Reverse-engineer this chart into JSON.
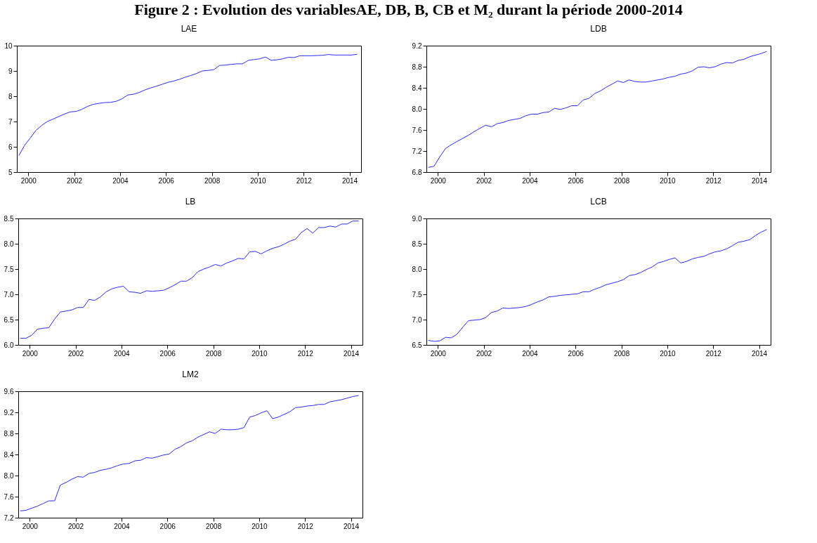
{
  "chart_data": [
    {
      "type": "other",
      "title": "Figure 2 : Evolution des variablesAE, DB, B, CB et M₂ durant la période 2000-2014"
    },
    {
      "type": "line",
      "title": "LAE",
      "xlim": [
        "2000-01-01",
        "2015-01-01"
      ],
      "xticks": [
        {
          "value": "2000-07-01",
          "label": "2000"
        },
        {
          "value": "2002-07-01",
          "label": "2002"
        },
        {
          "value": "2004-07-01",
          "label": "2004"
        },
        {
          "value": "2006-07-01",
          "label": "2006"
        },
        {
          "value": "2008-07-01",
          "label": "2008"
        },
        {
          "value": "2010-07-01",
          "label": "2010"
        },
        {
          "value": "2012-07-01",
          "label": "2012"
        },
        {
          "value": "2014-07-01",
          "label": "2014"
        }
      ],
      "ylim": [
        5,
        10
      ],
      "yticks": [
        5,
        6,
        7,
        8,
        9,
        10
      ],
      "grid": false,
      "marker": "none",
      "line_style": "solid",
      "series": [
        {
          "color": "#2b2bff",
          "values": [
            5.65,
            6.05,
            6.35,
            6.65,
            6.85,
            7.0,
            7.1,
            7.2,
            7.3,
            7.38,
            7.4,
            7.48,
            7.6,
            7.68,
            7.72,
            7.75,
            7.76,
            7.8,
            7.9,
            8.05,
            8.08,
            8.15,
            8.25,
            8.33,
            8.4,
            8.47,
            8.55,
            8.6,
            8.67,
            8.75,
            8.82,
            8.9,
            9.0,
            9.02,
            9.05,
            9.22,
            9.23,
            9.26,
            9.28,
            9.28,
            9.42,
            9.45,
            9.48,
            9.55,
            9.42,
            9.44,
            9.48,
            9.54,
            9.53,
            9.6,
            9.6,
            9.6,
            9.61,
            9.62,
            9.65,
            9.63,
            9.63,
            9.63,
            9.63,
            9.66
          ]
        }
      ],
      "x": [
        "2000-02",
        "2000-05",
        "2000-08",
        "2000-11",
        "2001-02",
        "2001-05",
        "2001-08",
        "2001-11",
        "2002-02",
        "2002-05",
        "2002-08",
        "2002-11",
        "2003-02",
        "2003-05",
        "2003-08",
        "2003-11",
        "2004-02",
        "2004-05",
        "2004-08",
        "2004-11",
        "2005-02",
        "2005-05",
        "2005-08",
        "2005-11",
        "2006-02",
        "2006-05",
        "2006-08",
        "2006-11",
        "2007-02",
        "2007-05",
        "2007-08",
        "2007-11",
        "2008-02",
        "2008-05",
        "2008-08",
        "2008-11",
        "2009-02",
        "2009-05",
        "2009-08",
        "2009-11",
        "2010-02",
        "2010-05",
        "2010-08",
        "2010-11",
        "2011-02",
        "2011-05",
        "2011-08",
        "2011-11",
        "2012-02",
        "2012-05",
        "2012-08",
        "2012-11",
        "2013-02",
        "2013-05",
        "2013-08",
        "2013-11",
        "2014-02",
        "2014-05",
        "2014-08",
        "2014-11"
      ]
    },
    {
      "type": "line",
      "title": "LDB",
      "xlim": [
        "2000-01-01",
        "2015-01-01"
      ],
      "xticks": [
        {
          "value": "2000-07-01",
          "label": "2000"
        },
        {
          "value": "2002-07-01",
          "label": "2002"
        },
        {
          "value": "2004-07-01",
          "label": "2004"
        },
        {
          "value": "2006-07-01",
          "label": "2006"
        },
        {
          "value": "2008-07-01",
          "label": "2008"
        },
        {
          "value": "2010-07-01",
          "label": "2010"
        },
        {
          "value": "2012-07-01",
          "label": "2012"
        },
        {
          "value": "2014-07-01",
          "label": "2014"
        }
      ],
      "ylim": [
        6.8,
        9.2
      ],
      "yticks": [
        6.8,
        7.2,
        7.6,
        {
          "value": 8,
          "label": "8.0"
        },
        8.4,
        8.8,
        9.2
      ],
      "grid": false,
      "marker": "none",
      "line_style": "solid",
      "series": [
        {
          "color": "#2b2bff",
          "values": [
            6.89,
            6.91,
            7.09,
            7.25,
            7.32,
            7.38,
            7.44,
            7.5,
            7.57,
            7.63,
            7.69,
            7.66,
            7.72,
            7.74,
            7.78,
            7.8,
            7.82,
            7.87,
            7.9,
            7.9,
            7.93,
            7.94,
            8.01,
            7.99,
            8.02,
            8.06,
            8.06,
            8.17,
            8.2,
            8.29,
            8.34,
            8.41,
            8.47,
            8.53,
            8.5,
            8.55,
            8.52,
            8.51,
            8.51,
            8.53,
            8.55,
            8.57,
            8.6,
            8.62,
            8.66,
            8.68,
            8.72,
            8.79,
            8.8,
            8.78,
            8.8,
            8.85,
            8.88,
            8.87,
            8.92,
            8.94,
            8.99,
            9.02,
            9.05,
            9.09
          ]
        }
      ],
      "x": [
        "2000-02",
        "2000-05",
        "2000-08",
        "2000-11",
        "2001-02",
        "2001-05",
        "2001-08",
        "2001-11",
        "2002-02",
        "2002-05",
        "2002-08",
        "2002-11",
        "2003-02",
        "2003-05",
        "2003-08",
        "2003-11",
        "2004-02",
        "2004-05",
        "2004-08",
        "2004-11",
        "2005-02",
        "2005-05",
        "2005-08",
        "2005-11",
        "2006-02",
        "2006-05",
        "2006-08",
        "2006-11",
        "2007-02",
        "2007-05",
        "2007-08",
        "2007-11",
        "2008-02",
        "2008-05",
        "2008-08",
        "2008-11",
        "2009-02",
        "2009-05",
        "2009-08",
        "2009-11",
        "2010-02",
        "2010-05",
        "2010-08",
        "2010-11",
        "2011-02",
        "2011-05",
        "2011-08",
        "2011-11",
        "2012-02",
        "2012-05",
        "2012-08",
        "2012-11",
        "2013-02",
        "2013-05",
        "2013-08",
        "2013-11",
        "2014-02",
        "2014-05",
        "2014-08",
        "2014-11"
      ]
    },
    {
      "type": "line",
      "title": "LB",
      "xlim": [
        "2000-01-01",
        "2015-01-01"
      ],
      "xticks": [
        {
          "value": "2000-07-01",
          "label": "2000"
        },
        {
          "value": "2002-07-01",
          "label": "2002"
        },
        {
          "value": "2004-07-01",
          "label": "2004"
        },
        {
          "value": "2006-07-01",
          "label": "2006"
        },
        {
          "value": "2008-07-01",
          "label": "2008"
        },
        {
          "value": "2010-07-01",
          "label": "2010"
        },
        {
          "value": "2012-07-01",
          "label": "2012"
        },
        {
          "value": "2014-07-01",
          "label": "2014"
        }
      ],
      "ylim": [
        6,
        8.5
      ],
      "yticks": [
        {
          "value": 6,
          "label": "6.0"
        },
        6.5,
        {
          "value": 7,
          "label": "7.0"
        },
        7.5,
        {
          "value": 8,
          "label": "8.0"
        },
        8.5
      ],
      "grid": false,
      "marker": "none",
      "line_style": "solid",
      "series": [
        {
          "color": "#2b2bff",
          "values": [
            6.13,
            6.13,
            6.19,
            6.31,
            6.33,
            6.34,
            6.51,
            6.65,
            6.67,
            6.69,
            6.74,
            6.74,
            6.9,
            6.88,
            6.95,
            7.05,
            7.11,
            7.14,
            7.16,
            7.05,
            7.04,
            7.02,
            7.07,
            7.06,
            7.07,
            7.08,
            7.13,
            7.19,
            7.26,
            7.26,
            7.33,
            7.45,
            7.5,
            7.54,
            7.59,
            7.56,
            7.62,
            7.66,
            7.71,
            7.7,
            7.84,
            7.85,
            7.8,
            7.86,
            7.91,
            7.94,
            7.99,
            8.05,
            8.09,
            8.22,
            8.3,
            8.21,
            8.32,
            8.32,
            8.35,
            8.33,
            8.39,
            8.39,
            8.45,
            8.45
          ]
        }
      ],
      "x": [
        "2000-02",
        "2000-05",
        "2000-08",
        "2000-11",
        "2001-02",
        "2001-05",
        "2001-08",
        "2001-11",
        "2002-02",
        "2002-05",
        "2002-08",
        "2002-11",
        "2003-02",
        "2003-05",
        "2003-08",
        "2003-11",
        "2004-02",
        "2004-05",
        "2004-08",
        "2004-11",
        "2005-02",
        "2005-05",
        "2005-08",
        "2005-11",
        "2006-02",
        "2006-05",
        "2006-08",
        "2006-11",
        "2007-02",
        "2007-05",
        "2007-08",
        "2007-11",
        "2008-02",
        "2008-05",
        "2008-08",
        "2008-11",
        "2009-02",
        "2009-05",
        "2009-08",
        "2009-11",
        "2010-02",
        "2010-05",
        "2010-08",
        "2010-11",
        "2011-02",
        "2011-05",
        "2011-08",
        "2011-11",
        "2012-02",
        "2012-05",
        "2012-08",
        "2012-11",
        "2013-02",
        "2013-05",
        "2013-08",
        "2013-11",
        "2014-02",
        "2014-05",
        "2014-08",
        "2014-11"
      ]
    },
    {
      "type": "line",
      "title": "LCB",
      "xlim": [
        "2000-01-01",
        "2015-01-01"
      ],
      "xticks": [
        {
          "value": "2000-07-01",
          "label": "2000"
        },
        {
          "value": "2002-07-01",
          "label": "2002"
        },
        {
          "value": "2004-07-01",
          "label": "2004"
        },
        {
          "value": "2006-07-01",
          "label": "2006"
        },
        {
          "value": "2008-07-01",
          "label": "2008"
        },
        {
          "value": "2010-07-01",
          "label": "2010"
        },
        {
          "value": "2012-07-01",
          "label": "2012"
        },
        {
          "value": "2014-07-01",
          "label": "2014"
        }
      ],
      "ylim": [
        6.5,
        9
      ],
      "yticks": [
        6.5,
        {
          "value": 7,
          "label": "7.0"
        },
        7.5,
        {
          "value": 8,
          "label": "8.0"
        },
        8.5,
        {
          "value": 9,
          "label": "9.0"
        }
      ],
      "grid": false,
      "marker": "none",
      "line_style": "solid",
      "series": [
        {
          "color": "#2b2bff",
          "values": [
            6.59,
            6.57,
            6.58,
            6.65,
            6.64,
            6.71,
            6.85,
            6.98,
            6.99,
            7.0,
            7.04,
            7.14,
            7.17,
            7.23,
            7.22,
            7.23,
            7.24,
            7.26,
            7.3,
            7.35,
            7.39,
            7.45,
            7.46,
            7.48,
            7.49,
            7.5,
            7.51,
            7.55,
            7.55,
            7.6,
            7.64,
            7.69,
            7.72,
            7.75,
            7.79,
            7.87,
            7.89,
            7.93,
            7.99,
            8.04,
            8.12,
            8.15,
            8.19,
            8.22,
            8.12,
            8.15,
            8.2,
            8.23,
            8.25,
            8.3,
            8.34,
            8.36,
            8.4,
            8.46,
            8.53,
            8.55,
            8.58,
            8.66,
            8.73,
            8.78
          ]
        }
      ],
      "x": [
        "2000-02",
        "2000-05",
        "2000-08",
        "2000-11",
        "2001-02",
        "2001-05",
        "2001-08",
        "2001-11",
        "2002-02",
        "2002-05",
        "2002-08",
        "2002-11",
        "2003-02",
        "2003-05",
        "2003-08",
        "2003-11",
        "2004-02",
        "2004-05",
        "2004-08",
        "2004-11",
        "2005-02",
        "2005-05",
        "2005-08",
        "2005-11",
        "2006-02",
        "2006-05",
        "2006-08",
        "2006-11",
        "2007-02",
        "2007-05",
        "2007-08",
        "2007-11",
        "2008-02",
        "2008-05",
        "2008-08",
        "2008-11",
        "2009-02",
        "2009-05",
        "2009-08",
        "2009-11",
        "2010-02",
        "2010-05",
        "2010-08",
        "2010-11",
        "2011-02",
        "2011-05",
        "2011-08",
        "2011-11",
        "2012-02",
        "2012-05",
        "2012-08",
        "2012-11",
        "2013-02",
        "2013-05",
        "2013-08",
        "2013-11",
        "2014-02",
        "2014-05",
        "2014-08",
        "2014-11"
      ]
    },
    {
      "type": "line",
      "title": "LM2",
      "xlim": [
        "2000-01-01",
        "2015-01-01"
      ],
      "xticks": [
        {
          "value": "2000-07-01",
          "label": "2000"
        },
        {
          "value": "2002-07-01",
          "label": "2002"
        },
        {
          "value": "2004-07-01",
          "label": "2004"
        },
        {
          "value": "2006-07-01",
          "label": "2006"
        },
        {
          "value": "2008-07-01",
          "label": "2008"
        },
        {
          "value": "2010-07-01",
          "label": "2010"
        },
        {
          "value": "2012-07-01",
          "label": "2012"
        },
        {
          "value": "2014-07-01",
          "label": "2014"
        }
      ],
      "ylim": [
        7.2,
        9.6
      ],
      "yticks": [
        7.2,
        7.6,
        {
          "value": 8,
          "label": "8.0"
        },
        8.4,
        8.8,
        9.2,
        9.6
      ],
      "grid": false,
      "marker": "none",
      "line_style": "solid",
      "series": [
        {
          "color": "#2b2bff",
          "values": [
            7.33,
            7.34,
            7.38,
            7.42,
            7.47,
            7.52,
            7.52,
            7.82,
            7.87,
            7.93,
            7.98,
            7.97,
            8.04,
            8.06,
            8.1,
            8.12,
            8.15,
            8.19,
            8.22,
            8.23,
            8.28,
            8.29,
            8.34,
            8.33,
            8.36,
            8.39,
            8.41,
            8.5,
            8.55,
            8.62,
            8.66,
            8.73,
            8.78,
            8.83,
            8.8,
            8.88,
            8.87,
            8.87,
            8.88,
            8.91,
            9.11,
            9.14,
            9.19,
            9.23,
            9.08,
            9.11,
            9.16,
            9.21,
            9.29,
            9.3,
            9.32,
            9.33,
            9.35,
            9.35,
            9.4,
            9.42,
            9.44,
            9.47,
            9.5,
            9.52
          ]
        }
      ],
      "x": [
        "2000-02",
        "2000-05",
        "2000-08",
        "2000-11",
        "2001-02",
        "2001-05",
        "2001-08",
        "2001-11",
        "2002-02",
        "2002-05",
        "2002-08",
        "2002-11",
        "2003-02",
        "2003-05",
        "2003-08",
        "2003-11",
        "2004-02",
        "2004-05",
        "2004-08",
        "2004-11",
        "2005-02",
        "2005-05",
        "2005-08",
        "2005-11",
        "2006-02",
        "2006-05",
        "2006-08",
        "2006-11",
        "2007-02",
        "2007-05",
        "2007-08",
        "2007-11",
        "2008-02",
        "2008-05",
        "2008-08",
        "2008-11",
        "2009-02",
        "2009-05",
        "2009-08",
        "2009-11",
        "2010-02",
        "2010-05",
        "2010-08",
        "2010-11",
        "2011-02",
        "2011-05",
        "2011-08",
        "2011-11",
        "2012-02",
        "2012-05",
        "2012-08",
        "2012-11",
        "2013-02",
        "2013-05",
        "2013-08",
        "2013-11",
        "2014-02",
        "2014-05",
        "2014-08",
        "2014-11"
      ]
    }
  ]
}
